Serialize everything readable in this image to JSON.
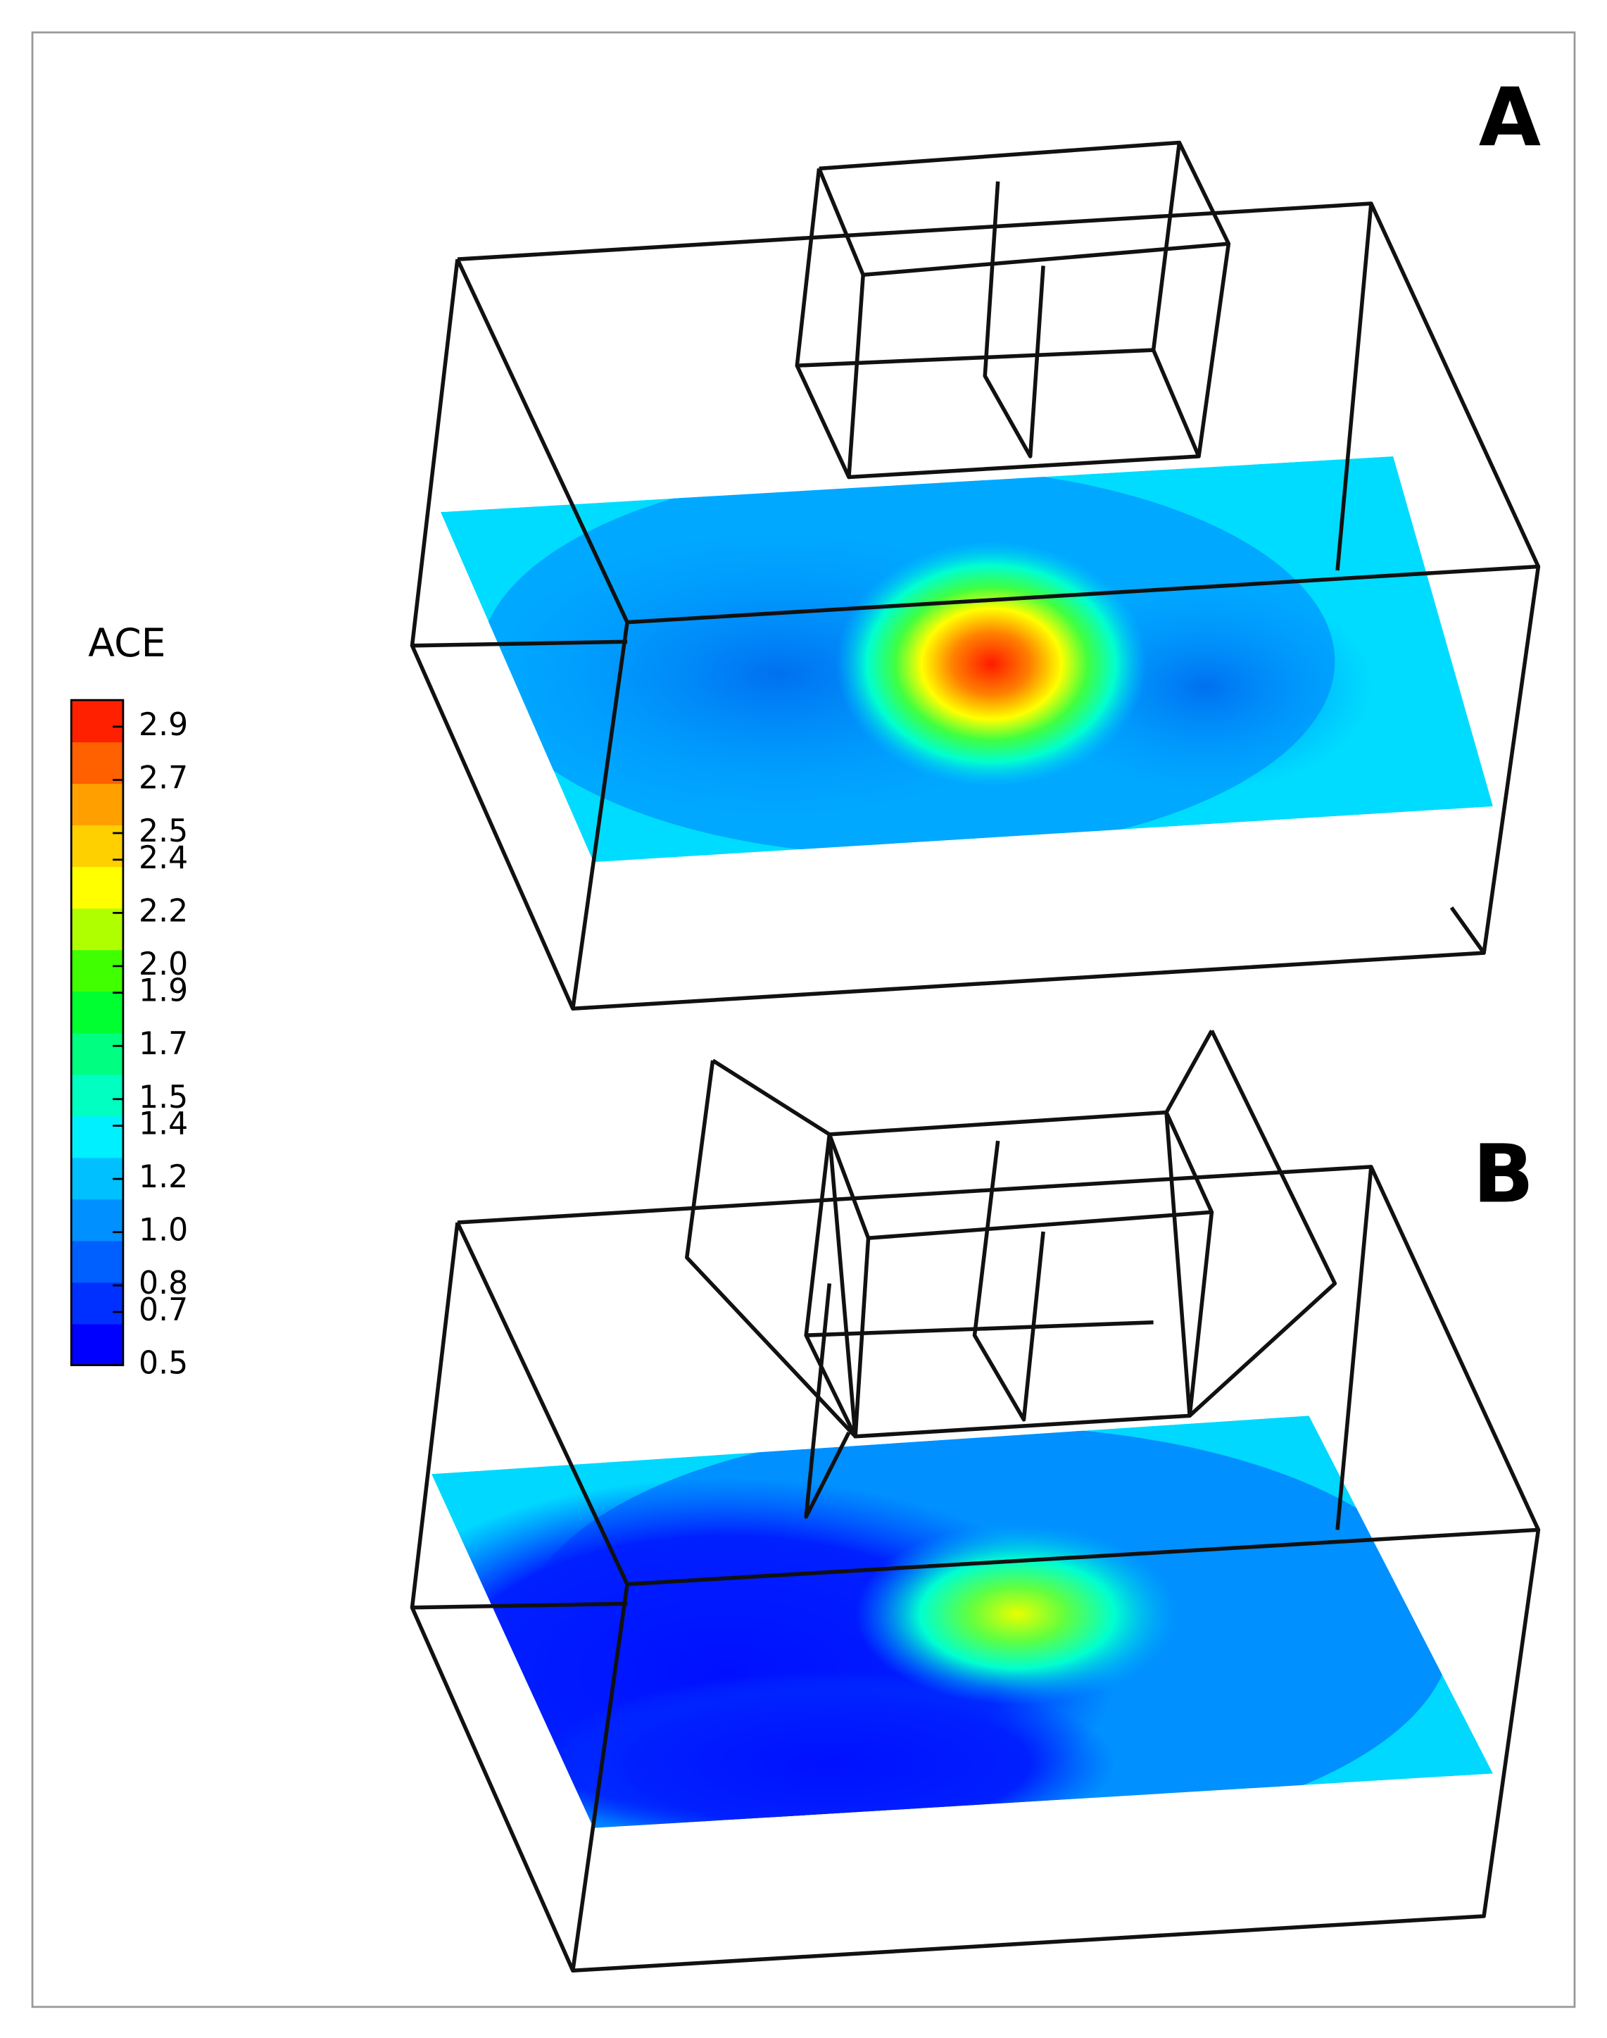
{
  "panels": [
    {
      "label": "A"
    },
    {
      "label": "B"
    }
  ],
  "colorbar": {
    "title": "ACE",
    "range": [
      0.5,
      3.0
    ],
    "ticks": [
      0.5,
      0.7,
      0.8,
      {
        "value": 1,
        "label": "1.0"
      },
      1.2,
      1.4,
      1.5,
      1.7,
      1.9,
      {
        "value": 2,
        "label": "2.0"
      },
      2.2,
      2.4,
      2.5,
      2.7,
      2.9
    ],
    "colors": [
      "#0000ff",
      "#0030ff",
      "#0060ff",
      "#0090ff",
      "#00c0ff",
      "#00f0ff",
      "#00ffc0",
      "#00ff80",
      "#00ff30",
      "#40ff00",
      "#b0ff00",
      "#ffff00",
      "#ffd000",
      "#ffa000",
      "#ff6000",
      "#ff2000"
    ]
  }
}
